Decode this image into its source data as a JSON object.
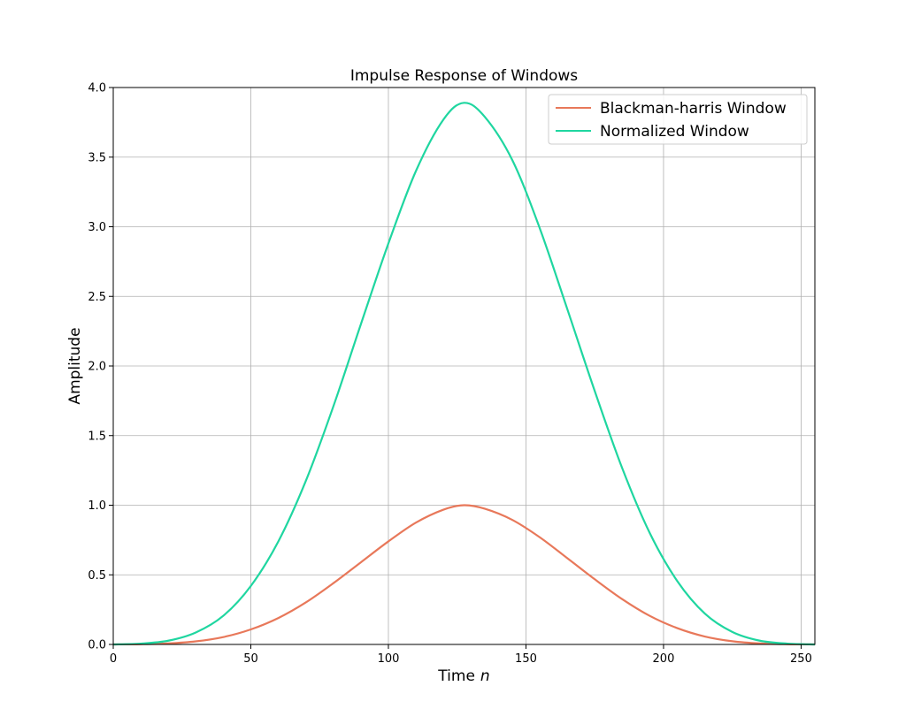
{
  "chart_data": {
    "type": "line",
    "title": "Impulse Response of Windows",
    "xlabel": "Time",
    "xlabel_var": "n",
    "ylabel": "Amplitude",
    "xlim": [
      0,
      255
    ],
    "ylim": [
      0,
      4.0
    ],
    "x_ticks": [
      0,
      50,
      100,
      150,
      200,
      250
    ],
    "y_ticks": [
      0.0,
      0.5,
      1.0,
      1.5,
      2.0,
      2.5,
      3.0,
      3.5,
      4.0
    ],
    "grid": true,
    "legend_position": "top-right",
    "series": [
      {
        "name": "Blackman-harris Window",
        "color": "#e8785a",
        "x": [
          0,
          10,
          20,
          30,
          40,
          50,
          60,
          70,
          80,
          90,
          100,
          110,
          120,
          127.5,
          135,
          145,
          155,
          165,
          175,
          185,
          195,
          205,
          215,
          225,
          235,
          245,
          255
        ],
        "y": [
          6e-05,
          0.0015,
          0.007,
          0.022,
          0.053,
          0.108,
          0.19,
          0.302,
          0.44,
          0.59,
          0.74,
          0.875,
          0.968,
          1.0,
          0.975,
          0.895,
          0.77,
          0.62,
          0.468,
          0.325,
          0.205,
          0.117,
          0.057,
          0.023,
          0.007,
          0.0015,
          6e-05
        ]
      },
      {
        "name": "Normalized Window",
        "color": "#1fd6a0",
        "x": [
          0,
          10,
          20,
          30,
          40,
          50,
          60,
          70,
          80,
          90,
          100,
          110,
          120,
          127.5,
          135,
          145,
          155,
          165,
          175,
          185,
          195,
          205,
          215,
          225,
          235,
          245,
          255
        ],
        "y": [
          0.0002,
          0.006,
          0.027,
          0.086,
          0.206,
          0.42,
          0.74,
          1.175,
          1.71,
          2.3,
          2.88,
          3.4,
          3.77,
          3.89,
          3.79,
          3.48,
          2.99,
          2.41,
          1.82,
          1.265,
          0.8,
          0.455,
          0.222,
          0.09,
          0.027,
          0.006,
          0.0002
        ]
      }
    ]
  }
}
